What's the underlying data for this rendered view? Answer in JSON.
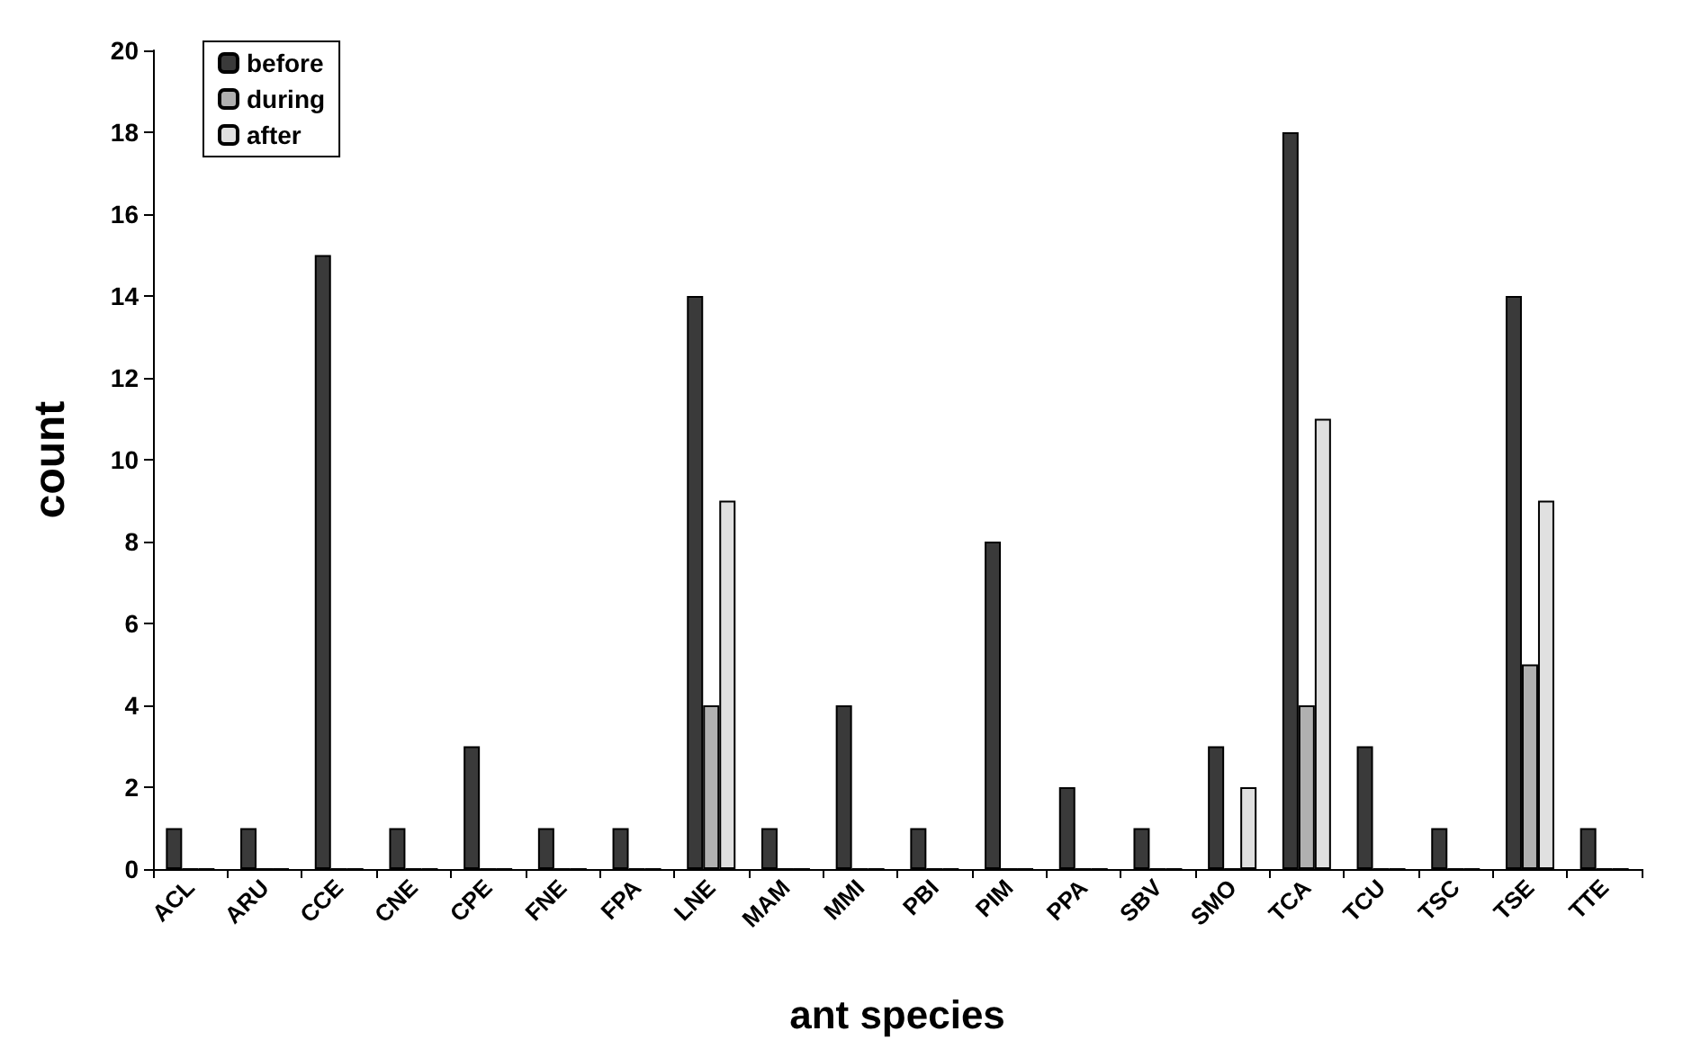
{
  "chart_data": {
    "type": "bar",
    "xlabel": "ant species",
    "ylabel": "count",
    "categories": [
      "ACL",
      "ARU",
      "CCE",
      "CNE",
      "CPE",
      "FNE",
      "FPA",
      "LNE",
      "MAM",
      "MMI",
      "PBI",
      "PIM",
      "PPA",
      "SBV",
      "SMO",
      "TCA",
      "TCU",
      "TSC",
      "TSE",
      "TTE"
    ],
    "series": [
      {
        "name": "before",
        "color": "#3a3a3a",
        "values": [
          1,
          1,
          15,
          1,
          3,
          1,
          1,
          14,
          1,
          4,
          1,
          8,
          2,
          1,
          3,
          18,
          3,
          1,
          14,
          1
        ]
      },
      {
        "name": "during",
        "color": "#b0b0b0",
        "values": [
          0,
          0,
          0,
          0,
          0,
          0,
          0,
          4,
          0,
          0,
          0,
          0,
          0,
          0,
          0,
          4,
          0,
          0,
          5,
          0
        ]
      },
      {
        "name": "after",
        "color": "#e0e0e0",
        "values": [
          0,
          0,
          0,
          0,
          0,
          0,
          0,
          9,
          0,
          0,
          0,
          0,
          0,
          0,
          2,
          11,
          0,
          0,
          9,
          0
        ]
      }
    ],
    "ylim": [
      0,
      20
    ],
    "yticks": [
      0,
      2,
      4,
      6,
      8,
      10,
      12,
      14,
      16,
      18,
      20
    ],
    "grid": false,
    "legend": "top left"
  }
}
